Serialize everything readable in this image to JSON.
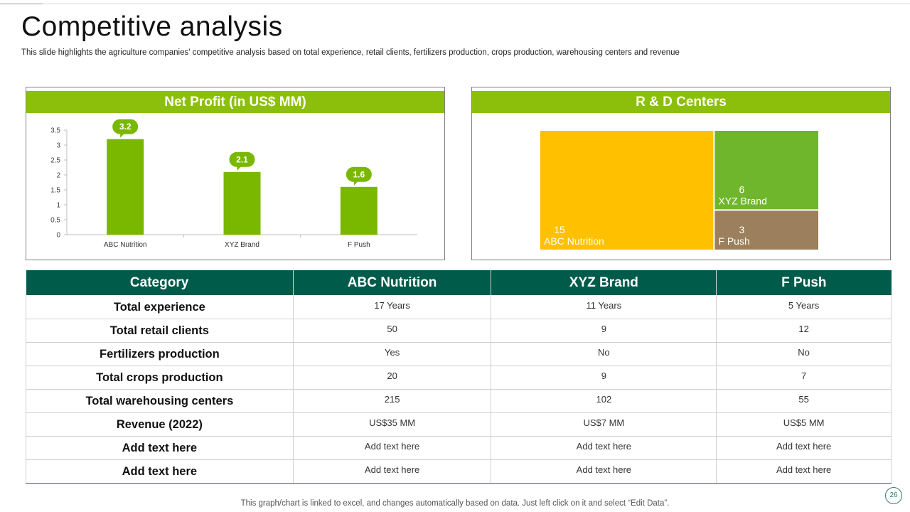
{
  "title": "Competitive analysis",
  "subtitle": "This slide highlights the agriculture companies' competitive analysis based on total experience, retail clients, fertilizers production, crops production, warehousing centers and revenue",
  "profit_chart": {
    "heading": "Net Profit (in US$ MM)"
  },
  "rd_chart": {
    "heading": "R & D Centers"
  },
  "chart_data": [
    {
      "type": "bar",
      "title": "Net Profit (in US$ MM)",
      "categories": [
        "ABC Nutrition",
        "XYZ Brand",
        "F Push"
      ],
      "values": [
        3.2,
        2.1,
        1.6
      ],
      "data_labels": [
        "3.2",
        "2.1",
        "1.6"
      ],
      "ylim": [
        0,
        3.5
      ],
      "yticks": [
        "0",
        "0.5",
        "1",
        "1.5",
        "2",
        "2.5",
        "3",
        "3.5"
      ],
      "xlabel": "",
      "ylabel": "",
      "grid": false,
      "bar_color": "#7ab800"
    },
    {
      "type": "treemap",
      "title": "R & D Centers",
      "items": [
        {
          "label": "ABC Nutrition",
          "value": 15,
          "value_label": "15",
          "color": "#ffc000"
        },
        {
          "label": "XYZ Brand",
          "value": 6,
          "value_label": "6",
          "color": "#70b62c"
        },
        {
          "label": "F Push",
          "value": 3,
          "value_label": "3",
          "color": "#9c7f5c"
        }
      ]
    }
  ],
  "table": {
    "headers": [
      "Category",
      "ABC Nutrition",
      "XYZ Brand",
      "F Push"
    ],
    "rows": [
      [
        "Total experience",
        "17 Years",
        "11 Years",
        "5 Years"
      ],
      [
        "Total retail clients",
        "50",
        "9",
        "12"
      ],
      [
        "Fertilizers production",
        "Yes",
        "No",
        "No"
      ],
      [
        "Total crops production",
        "20",
        "9",
        "7"
      ],
      [
        "Total warehousing centers",
        "215",
        "102",
        "55"
      ],
      [
        "Revenue (2022)",
        "US$35 MM",
        "US$7 MM",
        "US$5 MM"
      ],
      [
        "Add text here",
        "Add text here",
        "Add text here",
        "Add text here"
      ],
      [
        "Add text here",
        "Add text here",
        "Add text here",
        "Add text here"
      ]
    ]
  },
  "footer": "This graph/chart is linked to excel,  and changes automatically based on data. Just left click on it and select “Edit Data”.",
  "page_number": "26"
}
